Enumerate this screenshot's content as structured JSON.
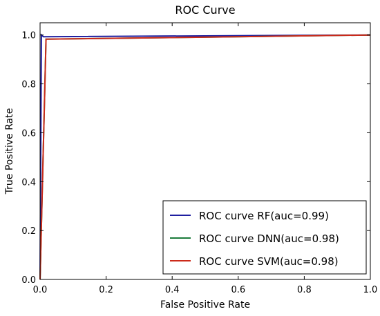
{
  "chart_data": {
    "type": "line",
    "title": "ROC Curve",
    "xlabel": "False Positive Rate",
    "ylabel": "True Positive Rate",
    "xlim": [
      0.0,
      1.0
    ],
    "ylim": [
      0.0,
      1.05
    ],
    "xticks": [
      "0.0",
      "0.2",
      "0.4",
      "0.6",
      "0.8",
      "1.0"
    ],
    "yticks": [
      "0.0",
      "0.2",
      "0.4",
      "0.6",
      "0.8",
      "1.0"
    ],
    "grid": false,
    "legend_position": "lower-right",
    "series": [
      {
        "name": "ROC curve RF(auc=0.99)",
        "color": "#1f1fa0",
        "x": [
          0.0,
          0.004,
          0.01,
          1.0
        ],
        "y": [
          0.0,
          1.0,
          0.993,
          1.0
        ]
      },
      {
        "name": "ROC curve DNN(auc=0.98)",
        "color": "#1a7a3a",
        "x": [
          0.0,
          0.018,
          1.0
        ],
        "y": [
          0.0,
          0.983,
          1.0
        ]
      },
      {
        "name": "ROC curve SVM(auc=0.98)",
        "color": "#cc2a1a",
        "x": [
          0.0,
          0.018,
          1.0
        ],
        "y": [
          0.0,
          0.983,
          1.0
        ]
      }
    ]
  }
}
